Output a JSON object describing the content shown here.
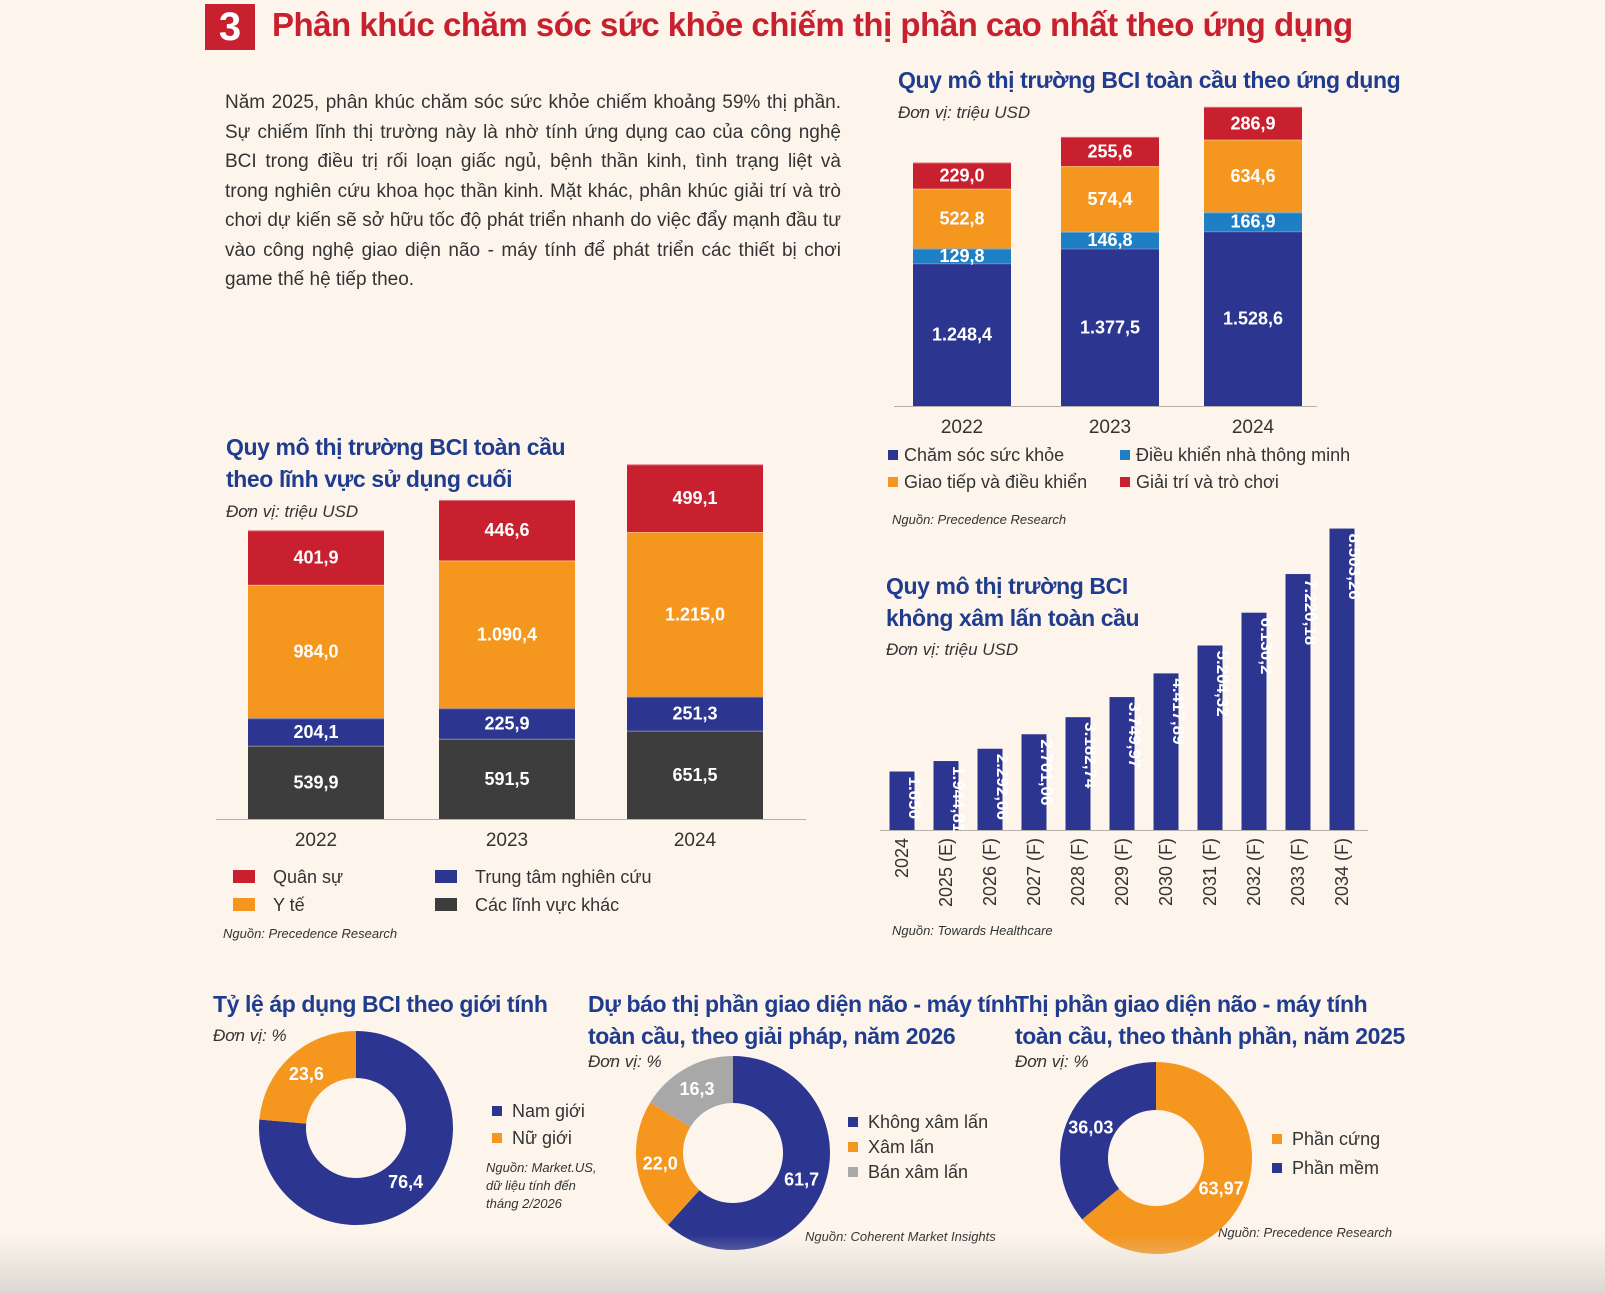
{
  "header": {
    "number": "3",
    "title": "Phân khúc chăm sóc sức khỏe chiếm thị phần cao nhất theo ứng dụng"
  },
  "body_text": "Năm 2025, phân khúc chăm sóc sức khỏe chiếm khoảng 59% thị phần. Sự chiếm lĩnh thị trường này là nhờ tính ứng dụng cao của công nghệ BCI trong điều trị rối loạn giấc ngủ, bệnh thần kinh, tình trạng liệt và trong nghiên cứu khoa học thần kinh. Mặt khác, phân khúc giải trí và trò chơi dự kiến sẽ sở hữu tốc độ phát triển nhanh do việc đẩy mạnh đầu tư vào công nghệ giao diện não - máy tính để phát triển các thiết bị chơi game thế hệ tiếp theo.",
  "colors": {
    "navy": "#2c3690",
    "blue": "#1f7fc5",
    "orange": "#f5961f",
    "red": "#c8202f",
    "dark": "#3d3d3d",
    "gray": "#a8a8a8",
    "title": "#1f3c8f"
  },
  "charts": {
    "app": {
      "title": "Quy mô thị trường BCI toàn cầu theo ứng dụng",
      "unit": "Đơn vị: triệu USD",
      "source": "Nguồn: Precedence Research",
      "chart_data": {
        "type": "bar",
        "stacked": true,
        "categories": [
          "2022",
          "2023",
          "2024"
        ],
        "series": [
          {
            "name": "Chăm sóc sức khỏe",
            "color": "#2c3690",
            "values": [
              1248.4,
              1377.5,
              1528.6
            ],
            "labels": [
              "1.248,4",
              "1.377,5",
              "1.528,6"
            ]
          },
          {
            "name": "Điều khiển nhà thông minh",
            "color": "#1f7fc5",
            "values": [
              129.8,
              146.8,
              166.9
            ],
            "labels": [
              "129,8",
              "146,8",
              "166,9"
            ]
          },
          {
            "name": "Giao tiếp và điều khiển",
            "color": "#f5961f",
            "values": [
              522.8,
              574.4,
              634.6
            ],
            "labels": [
              "522,8",
              "574,4",
              "634,6"
            ]
          },
          {
            "name": "Giải trí và trò chơi",
            "color": "#c8202f",
            "values": [
              229.0,
              255.6,
              286.9
            ],
            "labels": [
              "229,0",
              "255,6",
              "286,9"
            ]
          }
        ],
        "legend_order": [
          "Chăm sóc sức khỏe",
          "Điều khiển nhà thông minh",
          "Giao tiếp và điều khiển",
          "Giải trí và trò chơi"
        ]
      }
    },
    "enduse": {
      "title_lines": [
        "Quy mô thị trường BCI toàn cầu",
        "theo lĩnh vực sử dụng cuối"
      ],
      "unit": "Đơn vị: triệu USD",
      "source": "Nguồn: Precedence Research",
      "chart_data": {
        "type": "bar",
        "stacked": true,
        "categories": [
          "2022",
          "2023",
          "2024"
        ],
        "series": [
          {
            "name": "Các lĩnh vực khác",
            "color": "#3d3d3d",
            "values": [
              539.9,
              591.5,
              651.5
            ],
            "labels": [
              "539,9",
              "591,5",
              "651,5"
            ]
          },
          {
            "name": "Trung tâm nghiên cứu",
            "color": "#2c3690",
            "values": [
              204.1,
              225.9,
              251.3
            ],
            "labels": [
              "204,1",
              "225,9",
              "251,3"
            ]
          },
          {
            "name": "Y tế",
            "color": "#f5961f",
            "values": [
              984.0,
              1090.4,
              1215.0
            ],
            "labels": [
              "984,0",
              "1.090,4",
              "1.215,0"
            ]
          },
          {
            "name": "Quân sự",
            "color": "#c8202f",
            "values": [
              401.9,
              446.6,
              499.1
            ],
            "labels": [
              "401,9",
              "446,6",
              "499,1"
            ]
          }
        ],
        "legend_order": [
          "Quân sự",
          "Trung tâm nghiên cứu",
          "Y tế",
          "Các lĩnh vực khác"
        ]
      }
    },
    "noninv": {
      "title_lines": [
        "Quy mô thị trường BCI",
        "không xâm lấn toàn cầu"
      ],
      "unit": "Đơn vị: triệu USD",
      "source": "Nguồn: Towards Healthcare",
      "chart_data": {
        "type": "bar",
        "categories": [
          "2024",
          "2025 (E)",
          "2026 (F)",
          "2027 (F)",
          "2028 (F)",
          "2029 (F)",
          "2030 (F)",
          "2031 (F)",
          "2032 (F)",
          "2033 (F)",
          "2034 (F)"
        ],
        "values": [
          1650,
          1944.81,
          2292.06,
          2701.06,
          3182.74,
          3749.97,
          4417.89,
          5204.32,
          6130.2,
          7220.18,
          8503.26
        ],
        "labels": [
          "1.650",
          "1.944,81",
          "2.292,06",
          "2.701,06",
          "3.182,74",
          "3.749,97",
          "4.417,89",
          "5.204,32",
          "6.130,2",
          "7.220,18",
          "8.503,26"
        ],
        "color": "#2c3690"
      }
    },
    "gender": {
      "title": "Tỷ lệ áp dụng BCI theo giới tính",
      "unit": "Đơn vị: %",
      "source_lines": [
        "Nguồn: Market.US,",
        "dữ liệu tính đến",
        "tháng 2/2026"
      ],
      "chart_data": {
        "type": "pie",
        "donut": true,
        "slices": [
          {
            "name": "Nam giới",
            "value": 76.4,
            "label": "76,4",
            "color": "#2c3690"
          },
          {
            "name": "Nữ giới",
            "value": 23.6,
            "label": "23,6",
            "color": "#f5961f"
          }
        ]
      }
    },
    "solution": {
      "title_lines": [
        "Dự báo thị phần giao diện não - máy tính",
        "toàn cầu, theo giải pháp, năm 2026"
      ],
      "unit": "Đơn vị: %",
      "source": "Nguồn: Coherent Market Insights",
      "chart_data": {
        "type": "pie",
        "donut": true,
        "slices": [
          {
            "name": "Không xâm lấn",
            "value": 61.7,
            "label": "61,7",
            "color": "#2c3690"
          },
          {
            "name": "Xâm lấn",
            "value": 22.0,
            "label": "22,0",
            "color": "#f5961f"
          },
          {
            "name": "Bán xâm lấn",
            "value": 16.3,
            "label": "16,3",
            "color": "#a8a8a8"
          }
        ]
      }
    },
    "component": {
      "title_lines": [
        "Thị phần giao diện não - máy tính",
        "toàn cầu, theo thành phần, năm 2025"
      ],
      "unit": "Đơn vị: %",
      "source": "Nguồn: Precedence Research",
      "chart_data": {
        "type": "pie",
        "donut": true,
        "slices": [
          {
            "name": "Phần cứng",
            "value": 63.97,
            "label": "63,97",
            "color": "#f5961f"
          },
          {
            "name": "Phần mềm",
            "value": 36.03,
            "label": "36,03",
            "color": "#2c3690"
          }
        ]
      }
    }
  }
}
